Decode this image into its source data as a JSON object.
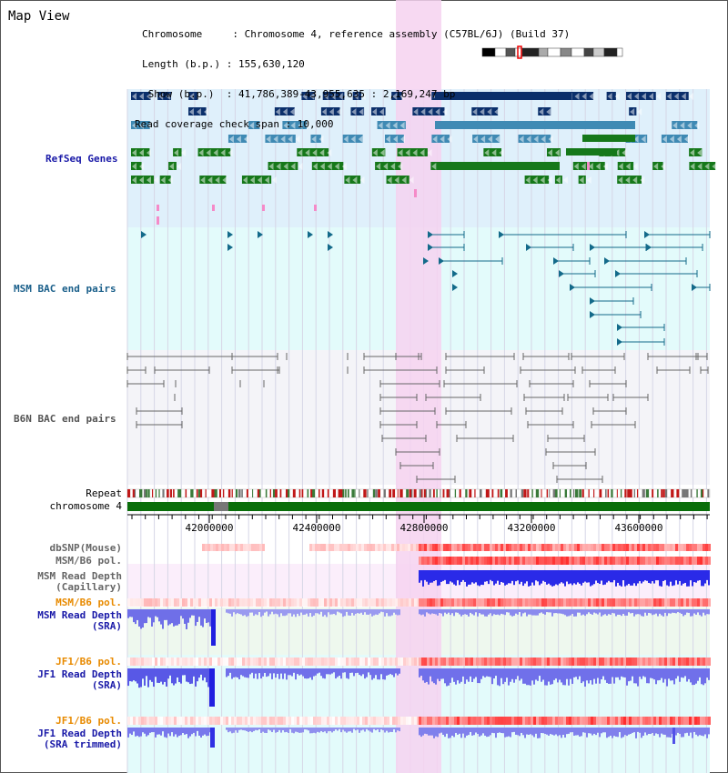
{
  "header": {
    "title": "Map View",
    "info_lines": [
      "Chromosome     : Chromosome 4, reference assembly (C57BL/6J) (Build 37)",
      "Length (b.p.) : 155,630,120",
      " Show (b.p.)  : 41,786,389-43,955,635 : 2,169,247 bp",
      "Read coverage check span : 10,000"
    ]
  },
  "tracks": {
    "refseq": "RefSeq Genes",
    "msm_bac": "MSM BAC end pairs",
    "b6n_bac": "B6N BAC end pairs",
    "repeat": "Repeat",
    "chromosome": "chromosome 4"
  },
  "axis": {
    "ticks": [
      "42000000",
      "42400000",
      "42800000",
      "43200000",
      "43600000"
    ]
  },
  "data_tracks": {
    "dbsnp": "dbSNP(Mouse)",
    "msm_b6_pol": "MSM/B6 pol.",
    "msm_depth_cap_1": "MSM Read Depth",
    "msm_depth_cap_2": "(Capillary)",
    "msm_b6_pol_2": "MSM/B6 pol.",
    "msm_depth_sra_1": "MSM Read Depth",
    "msm_depth_sra_2": "(SRA)",
    "jf1_b6_pol": "JF1/B6 pol.",
    "jf1_depth_sra_1": "JF1 Read Depth",
    "jf1_depth_sra_2": "(SRA)",
    "jf1_b6_pol_2": "JF1/B6 pol.",
    "jf1_depth_trim_1": "JF1 Read Depth",
    "jf1_depth_trim_2": "(SRA trimmed)"
  },
  "colors": {
    "refseq_bg": "#dff0fb",
    "msm_bg": "#e3fbfb",
    "highlight": "#f6d2f0",
    "gene_dark": "#0b2f6b",
    "gene_mid": "#3f8ab4",
    "gene_green": "#16781a",
    "msm_line": "#136a8a",
    "b6n_line": "#666666",
    "depth_blue": "#2a2ae8",
    "pol_red": "#e03030",
    "orange_label": "#e88a00",
    "blue_label": "#1a1aa8"
  }
}
